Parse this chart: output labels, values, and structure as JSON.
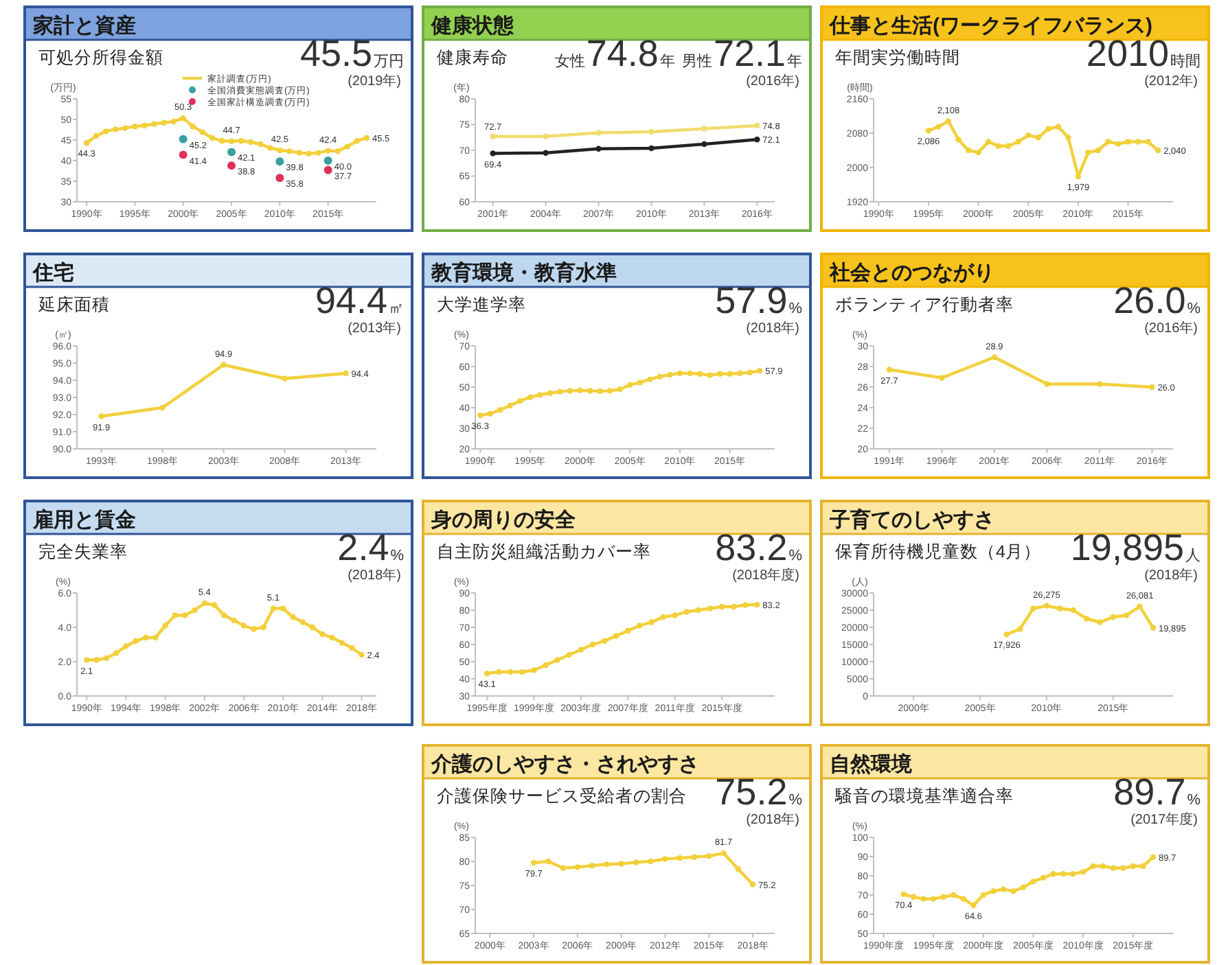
{
  "chart_data": [
    {
      "type": "line",
      "title": "家計と資産",
      "subtitle": "可処分所得金額",
      "annotations": [
        "45.5",
        "万円",
        "(2019年)"
      ],
      "ylabel": "(万円)",
      "marker": "circle",
      "legend": "top",
      "x": [
        1990,
        1991,
        1992,
        1993,
        1994,
        1995,
        1996,
        1997,
        1998,
        1999,
        2000,
        2001,
        2002,
        2003,
        2004,
        2005,
        2006,
        2007,
        2008,
        2009,
        2010,
        2011,
        2012,
        2013,
        2014,
        2015,
        2016,
        2017,
        2018,
        2019
      ],
      "xlim": [
        1989,
        2020
      ],
      "xticks": [
        {
          "value": 1990,
          "label": "1990年"
        },
        {
          "value": 1995,
          "label": "1995年"
        },
        {
          "value": 2000,
          "label": "2000年"
        },
        {
          "value": 2005,
          "label": "2005年"
        },
        {
          "value": 2010,
          "label": "2010年"
        },
        {
          "value": 2015,
          "label": "2015年"
        }
      ],
      "ylim": [
        30,
        55
      ],
      "yticks": [
        30,
        35,
        40,
        45,
        50,
        55
      ],
      "series": [
        {
          "name": "家計調査(万円)",
          "color": "#f2d03b",
          "values": [
            44.3,
            46.0,
            47.1,
            47.6,
            47.9,
            48.3,
            48.5,
            48.9,
            49.2,
            49.5,
            50.3,
            48.3,
            46.9,
            45.5,
            44.8,
            44.7,
            44.8,
            44.5,
            44.0,
            43.1,
            42.5,
            42.3,
            41.9,
            41.7,
            41.9,
            42.4,
            42.3,
            43.4,
            44.8,
            45.5
          ],
          "value_labels": [
            "44.3",
            null,
            null,
            null,
            null,
            null,
            null,
            null,
            null,
            null,
            "50.3",
            null,
            null,
            null,
            null,
            "44.7",
            null,
            null,
            null,
            null,
            "42.5",
            null,
            null,
            null,
            null,
            "42.4",
            null,
            null,
            null,
            "45.5"
          ]
        },
        {
          "name": "全国消費実態調査(万円)",
          "type": "scatter",
          "color": "#3a9fa0",
          "x": [
            2000,
            2005,
            2010,
            2015
          ],
          "values": [
            45.2,
            42.1,
            39.8,
            40.0
          ],
          "value_labels": [
            "45.2",
            "42.1",
            "39.8",
            "40.0"
          ]
        },
        {
          "name": "全国家計構造調査(万円)",
          "type": "scatter",
          "color": "#e0305a",
          "x": [
            2000,
            2005,
            2010,
            2015
          ],
          "values": [
            41.4,
            38.8,
            35.8,
            37.7
          ],
          "value_labels": [
            "41.4",
            "38.8",
            "35.8",
            "37.7"
          ]
        }
      ]
    },
    {
      "type": "line",
      "title": "健康状態",
      "subtitle": "健康寿命",
      "annotations": [
        "女性",
        "74.8",
        "年",
        "男性",
        "72.1",
        "年",
        "(2016年)"
      ],
      "ylabel": "(年)",
      "marker": "circle",
      "x": [
        2001,
        2004,
        2007,
        2010,
        2013,
        2016
      ],
      "xlim": [
        2000,
        2017
      ],
      "xticks": [
        {
          "value": 2001,
          "label": "2001年"
        },
        {
          "value": 2004,
          "label": "2004年"
        },
        {
          "value": 2007,
          "label": "2007年"
        },
        {
          "value": 2010,
          "label": "2010年"
        },
        {
          "value": 2013,
          "label": "2013年"
        },
        {
          "value": 2016,
          "label": "2016年"
        }
      ],
      "ylim": [
        60,
        80
      ],
      "yticks": [
        60,
        65,
        70,
        75,
        80
      ],
      "series": [
        {
          "color": "#f0dc6e",
          "values": [
            72.7,
            72.7,
            73.4,
            73.6,
            74.2,
            74.8
          ],
          "value_labels": [
            "72.7",
            null,
            null,
            null,
            null,
            "74.8"
          ]
        },
        {
          "color": "#222222",
          "values": [
            69.4,
            69.5,
            70.3,
            70.4,
            71.2,
            72.1
          ],
          "value_labels": [
            "69.4",
            null,
            null,
            null,
            null,
            "72.1"
          ]
        }
      ]
    },
    {
      "type": "line",
      "title": "仕事と生活(ワークライフバランス)",
      "subtitle": "年間実労働時間",
      "annotations": [
        "2010",
        "時間",
        "(2012年)"
      ],
      "ylabel": "(時間)",
      "marker": "circle",
      "x": [
        1995,
        1996,
        1997,
        1998,
        1999,
        2000,
        2001,
        2002,
        2003,
        2004,
        2005,
        2006,
        2007,
        2008,
        2009,
        2010,
        2011,
        2012,
        2013,
        2014,
        2015,
        2016,
        2017,
        2018
      ],
      "xlim": [
        1989.5,
        2019.5
      ],
      "xticks": [
        {
          "value": 1990,
          "label": "1990年"
        },
        {
          "value": 1995,
          "label": "1995年"
        },
        {
          "value": 2000,
          "label": "2000年"
        },
        {
          "value": 2005,
          "label": "2005年"
        },
        {
          "value": 2010,
          "label": "2010年"
        },
        {
          "value": 2015,
          "label": "2015年"
        }
      ],
      "ylim": [
        1920,
        2160
      ],
      "yticks": [
        1920,
        2000,
        2080,
        2160
      ],
      "series": [
        {
          "color": "#f2d03b",
          "values": [
            2086,
            2095,
            2108,
            2065,
            2040,
            2035,
            2060,
            2050,
            2050,
            2060,
            2075,
            2070,
            2090,
            2095,
            2070,
            1979,
            2035,
            2040,
            2060,
            2055,
            2060,
            2060,
            2060,
            2040
          ],
          "value_labels": [
            "2,086",
            null,
            "2,108",
            null,
            null,
            null,
            null,
            null,
            null,
            null,
            null,
            null,
            null,
            null,
            null,
            "1,979",
            null,
            null,
            null,
            null,
            null,
            null,
            null,
            "2,040"
          ]
        }
      ]
    },
    {
      "type": "line",
      "title": "住宅",
      "subtitle": "延床面積",
      "annotations": [
        "94.4",
        "㎡",
        "(2013年)"
      ],
      "ylabel": "(㎡)",
      "marker": "circle",
      "x": [
        1993,
        1998,
        2003,
        2008,
        2013
      ],
      "xlim": [
        1991,
        2015.5
      ],
      "xticks": [
        {
          "value": 1993,
          "label": "1993年"
        },
        {
          "value": 1998,
          "label": "1998年"
        },
        {
          "value": 2003,
          "label": "2003年"
        },
        {
          "value": 2008,
          "label": "2008年"
        },
        {
          "value": 2013,
          "label": "2013年"
        }
      ],
      "ylim": [
        90,
        96
      ],
      "yticks": [
        {
          "value": 90,
          "label": "90.0"
        },
        {
          "value": 91,
          "label": "91.0"
        },
        {
          "value": 92,
          "label": "92.0"
        },
        {
          "value": 93,
          "label": "93.0"
        },
        {
          "value": 94,
          "label": "94.0"
        },
        {
          "value": 95,
          "label": "95.0"
        },
        {
          "value": 96,
          "label": "96.0"
        }
      ],
      "series": [
        {
          "color": "#f2d03b",
          "values": [
            91.9,
            92.4,
            94.9,
            94.1,
            94.4
          ],
          "value_labels": [
            "91.9",
            null,
            "94.9",
            null,
            "94.4"
          ]
        }
      ]
    },
    {
      "type": "line",
      "title": "教育環境・教育水準",
      "subtitle": "大学進学率",
      "annotations": [
        "57.9",
        "%",
        "(2018年)"
      ],
      "ylabel": "(%)",
      "marker": "circle",
      "x": [
        1990,
        1991,
        1992,
        1993,
        1994,
        1995,
        1996,
        1997,
        1998,
        1999,
        2000,
        2001,
        2002,
        2003,
        2004,
        2005,
        2006,
        2007,
        2008,
        2009,
        2010,
        2011,
        2012,
        2013,
        2014,
        2015,
        2016,
        2017,
        2018
      ],
      "xlim": [
        1989.5,
        2019.5
      ],
      "xticks": [
        {
          "value": 1990,
          "label": "1990年"
        },
        {
          "value": 1995,
          "label": "1995年"
        },
        {
          "value": 2000,
          "label": "2000年"
        },
        {
          "value": 2005,
          "label": "2005年"
        },
        {
          "value": 2010,
          "label": "2010年"
        },
        {
          "value": 2015,
          "label": "2015年"
        }
      ],
      "ylim": [
        20,
        70
      ],
      "yticks": [
        20,
        30,
        40,
        50,
        60,
        70
      ],
      "series": [
        {
          "color": "#f2d03b",
          "values": [
            36.3,
            37.1,
            38.9,
            41.1,
            43.3,
            45.1,
            46.2,
            47.1,
            47.8,
            48.2,
            48.4,
            48.2,
            48.0,
            48.2,
            48.9,
            51.1,
            52.2,
            53.8,
            55.1,
            56.0,
            56.7,
            56.7,
            56.4,
            55.8,
            56.4,
            56.4,
            56.7,
            57.1,
            57.9
          ],
          "value_labels": [
            "36.3",
            null,
            null,
            null,
            null,
            null,
            null,
            null,
            null,
            null,
            null,
            null,
            null,
            null,
            null,
            null,
            null,
            null,
            null,
            null,
            null,
            null,
            null,
            null,
            null,
            null,
            null,
            null,
            "57.9"
          ]
        }
      ]
    },
    {
      "type": "line",
      "title": "社会とのつながり",
      "subtitle": "ボランティア行動者率",
      "annotations": [
        "26.0",
        "%",
        "(2016年)"
      ],
      "ylabel": "(%)",
      "marker": "circle",
      "x": [
        1991,
        1996,
        2001,
        2006,
        2011,
        2016
      ],
      "xlim": [
        1989.5,
        2018
      ],
      "xticks": [
        {
          "value": 1991,
          "label": "1991年"
        },
        {
          "value": 1996,
          "label": "1996年"
        },
        {
          "value": 2001,
          "label": "2001年"
        },
        {
          "value": 2006,
          "label": "2006年"
        },
        {
          "value": 2011,
          "label": "2011年"
        },
        {
          "value": 2016,
          "label": "2016年"
        }
      ],
      "ylim": [
        20,
        30
      ],
      "yticks": [
        20,
        22,
        24,
        26,
        28,
        30
      ],
      "series": [
        {
          "color": "#f2d03b",
          "values": [
            27.7,
            26.9,
            28.9,
            26.3,
            26.3,
            26.0
          ],
          "value_labels": [
            "27.7",
            null,
            "28.9",
            null,
            null,
            "26.0"
          ]
        }
      ]
    },
    {
      "type": "line",
      "title": "雇用と賃金",
      "subtitle": "完全失業率",
      "annotations": [
        "2.4",
        "%",
        "(2018年)"
      ],
      "ylabel": "(%)",
      "marker": "circle",
      "x": [
        1990,
        1991,
        1992,
        1993,
        1994,
        1995,
        1996,
        1997,
        1998,
        1999,
        2000,
        2001,
        2002,
        2003,
        2004,
        2005,
        2006,
        2007,
        2008,
        2009,
        2010,
        2011,
        2012,
        2013,
        2014,
        2015,
        2016,
        2017,
        2018
      ],
      "xlim": [
        1989,
        2019.5
      ],
      "xticks": [
        {
          "value": 1990,
          "label": "1990年"
        },
        {
          "value": 1994,
          "label": "1994年"
        },
        {
          "value": 1998,
          "label": "1998年"
        },
        {
          "value": 2002,
          "label": "2002年"
        },
        {
          "value": 2006,
          "label": "2006年"
        },
        {
          "value": 2010,
          "label": "2010年"
        },
        {
          "value": 2014,
          "label": "2014年"
        },
        {
          "value": 2018,
          "label": "2018年"
        }
      ],
      "ylim": [
        0,
        6
      ],
      "yticks": [
        {
          "value": 0,
          "label": "0.0"
        },
        {
          "value": 2,
          "label": "2.0"
        },
        {
          "value": 4,
          "label": "4.0"
        },
        {
          "value": 6,
          "label": "6.0"
        }
      ],
      "series": [
        {
          "color": "#f2d03b",
          "values": [
            2.1,
            2.1,
            2.2,
            2.5,
            2.9,
            3.2,
            3.4,
            3.4,
            4.1,
            4.7,
            4.7,
            5.0,
            5.4,
            5.3,
            4.7,
            4.4,
            4.1,
            3.9,
            4.0,
            5.1,
            5.1,
            4.6,
            4.3,
            4.0,
            3.6,
            3.4,
            3.1,
            2.8,
            2.4
          ],
          "value_labels": [
            "2.1",
            null,
            null,
            null,
            null,
            null,
            null,
            null,
            null,
            null,
            null,
            null,
            "5.4",
            null,
            null,
            null,
            null,
            null,
            null,
            "5.1",
            null,
            null,
            null,
            null,
            null,
            null,
            null,
            null,
            "2.4"
          ]
        }
      ]
    },
    {
      "type": "line",
      "title": "身の周りの安全",
      "subtitle": "自主防災組織活動カバー率",
      "annotations": [
        "83.2",
        "%",
        "(2018年度)"
      ],
      "ylabel": "(%)",
      "marker": "circle",
      "x": [
        1995,
        1996,
        1997,
        1998,
        1999,
        2000,
        2001,
        2002,
        2003,
        2004,
        2005,
        2006,
        2007,
        2008,
        2009,
        2010,
        2011,
        2012,
        2013,
        2014,
        2015,
        2016,
        2017,
        2018
      ],
      "xlim": [
        1994,
        2019.5
      ],
      "xticks": [
        {
          "value": 1995,
          "label": "1995年度"
        },
        {
          "value": 1999,
          "label": "1999年度"
        },
        {
          "value": 2003,
          "label": "2003年度"
        },
        {
          "value": 2007,
          "label": "2007年度"
        },
        {
          "value": 2011,
          "label": "2011年度"
        },
        {
          "value": 2015,
          "label": "2015年度"
        }
      ],
      "ylim": [
        30,
        90
      ],
      "yticks": [
        30,
        40,
        50,
        60,
        70,
        80,
        90
      ],
      "series": [
        {
          "color": "#f2d03b",
          "values": [
            43.1,
            44,
            44,
            44,
            45,
            48,
            51,
            54,
            57,
            60,
            62,
            65,
            68,
            71,
            73,
            76,
            77,
            79,
            80,
            81,
            82,
            82,
            83,
            83.2
          ],
          "value_labels": [
            "43.1",
            null,
            null,
            null,
            null,
            null,
            null,
            null,
            null,
            null,
            null,
            null,
            null,
            null,
            null,
            null,
            null,
            null,
            null,
            null,
            null,
            null,
            null,
            "83.2"
          ]
        }
      ]
    },
    {
      "type": "line",
      "title": "子育てのしやすさ",
      "subtitle": "保育所待機児童数（4月）",
      "annotations": [
        "19,895",
        "人",
        "(2018年)"
      ],
      "ylabel": "(人)",
      "marker": "circle",
      "x": [
        2007,
        2008,
        2009,
        2010,
        2011,
        2012,
        2013,
        2014,
        2015,
        2016,
        2017,
        2018
      ],
      "xlim": [
        1997,
        2019.5
      ],
      "xticks": [
        {
          "value": 2000,
          "label": "2000年"
        },
        {
          "value": 2005,
          "label": "2005年"
        },
        {
          "value": 2010,
          "label": "2010年"
        },
        {
          "value": 2015,
          "label": "2015年"
        }
      ],
      "ylim": [
        0,
        30000
      ],
      "yticks": [
        0,
        5000,
        10000,
        15000,
        20000,
        25000,
        30000
      ],
      "series": [
        {
          "color": "#f2d03b",
          "values": [
            17926,
            19500,
            25500,
            26275,
            25500,
            25000,
            22500,
            21500,
            23000,
            23500,
            26081,
            19895
          ],
          "value_labels": [
            "17,926",
            null,
            null,
            "26,275",
            null,
            null,
            null,
            null,
            null,
            null,
            "26,081",
            "19,895"
          ]
        }
      ]
    },
    {
      "type": "line",
      "title": "介護のしやすさ・されやすさ",
      "subtitle": "介護保険サービス受給者の割合",
      "annotations": [
        "75.2",
        "%",
        "(2018年)"
      ],
      "ylabel": "(%)",
      "marker": "circle",
      "x": [
        2003,
        2004,
        2005,
        2006,
        2007,
        2008,
        2009,
        2010,
        2011,
        2012,
        2013,
        2014,
        2015,
        2016,
        2017,
        2018
      ],
      "xlim": [
        1999,
        2019.5
      ],
      "xticks": [
        {
          "value": 2000,
          "label": "2000年"
        },
        {
          "value": 2003,
          "label": "2003年"
        },
        {
          "value": 2006,
          "label": "2006年"
        },
        {
          "value": 2009,
          "label": "2009年"
        },
        {
          "value": 2012,
          "label": "2012年"
        },
        {
          "value": 2015,
          "label": "2015年"
        },
        {
          "value": 2018,
          "label": "2018年"
        }
      ],
      "ylim": [
        65,
        85
      ],
      "yticks": [
        65,
        70,
        75,
        80,
        85
      ],
      "series": [
        {
          "color": "#f2d03b",
          "values": [
            79.7,
            80.0,
            78.6,
            78.8,
            79.1,
            79.4,
            79.5,
            79.8,
            80.0,
            80.5,
            80.7,
            80.9,
            81.1,
            81.7,
            78.4,
            75.2
          ],
          "value_labels": [
            "79.7",
            null,
            null,
            null,
            null,
            null,
            null,
            null,
            null,
            null,
            null,
            null,
            null,
            "81.7",
            null,
            "75.2"
          ]
        }
      ]
    },
    {
      "type": "line",
      "title": "自然環境",
      "subtitle": "騒音の環境基準適合率",
      "annotations": [
        "89.7",
        "%",
        "(2017年度)"
      ],
      "ylabel": "(%)",
      "marker": "circle",
      "x": [
        1992,
        1993,
        1994,
        1995,
        1996,
        1997,
        1998,
        1999,
        2000,
        2001,
        2002,
        2003,
        2004,
        2005,
        2006,
        2007,
        2008,
        2009,
        2010,
        2011,
        2012,
        2013,
        2014,
        2015,
        2016,
        2017
      ],
      "xlim": [
        1989,
        2019
      ],
      "xticks": [
        {
          "value": 1990,
          "label": "1990年度"
        },
        {
          "value": 1995,
          "label": "1995年度"
        },
        {
          "value": 2000,
          "label": "2000年度"
        },
        {
          "value": 2005,
          "label": "2005年度"
        },
        {
          "value": 2010,
          "label": "2010年度"
        },
        {
          "value": 2015,
          "label": "2015年度"
        }
      ],
      "ylim": [
        50,
        100
      ],
      "yticks": [
        50,
        60,
        70,
        80,
        90,
        100
      ],
      "series": [
        {
          "color": "#f2d03b",
          "values": [
            70.4,
            69,
            68,
            68,
            69,
            70,
            68,
            64.6,
            70,
            72,
            73,
            72,
            74,
            77,
            79,
            81,
            81,
            81,
            82,
            85,
            85,
            84,
            84,
            85,
            85,
            89.7
          ],
          "value_labels": [
            "70.4",
            null,
            null,
            null,
            null,
            null,
            null,
            "64.6",
            null,
            null,
            null,
            null,
            null,
            null,
            null,
            null,
            null,
            null,
            null,
            null,
            null,
            null,
            null,
            null,
            null,
            "89.7"
          ]
        }
      ]
    }
  ]
}
